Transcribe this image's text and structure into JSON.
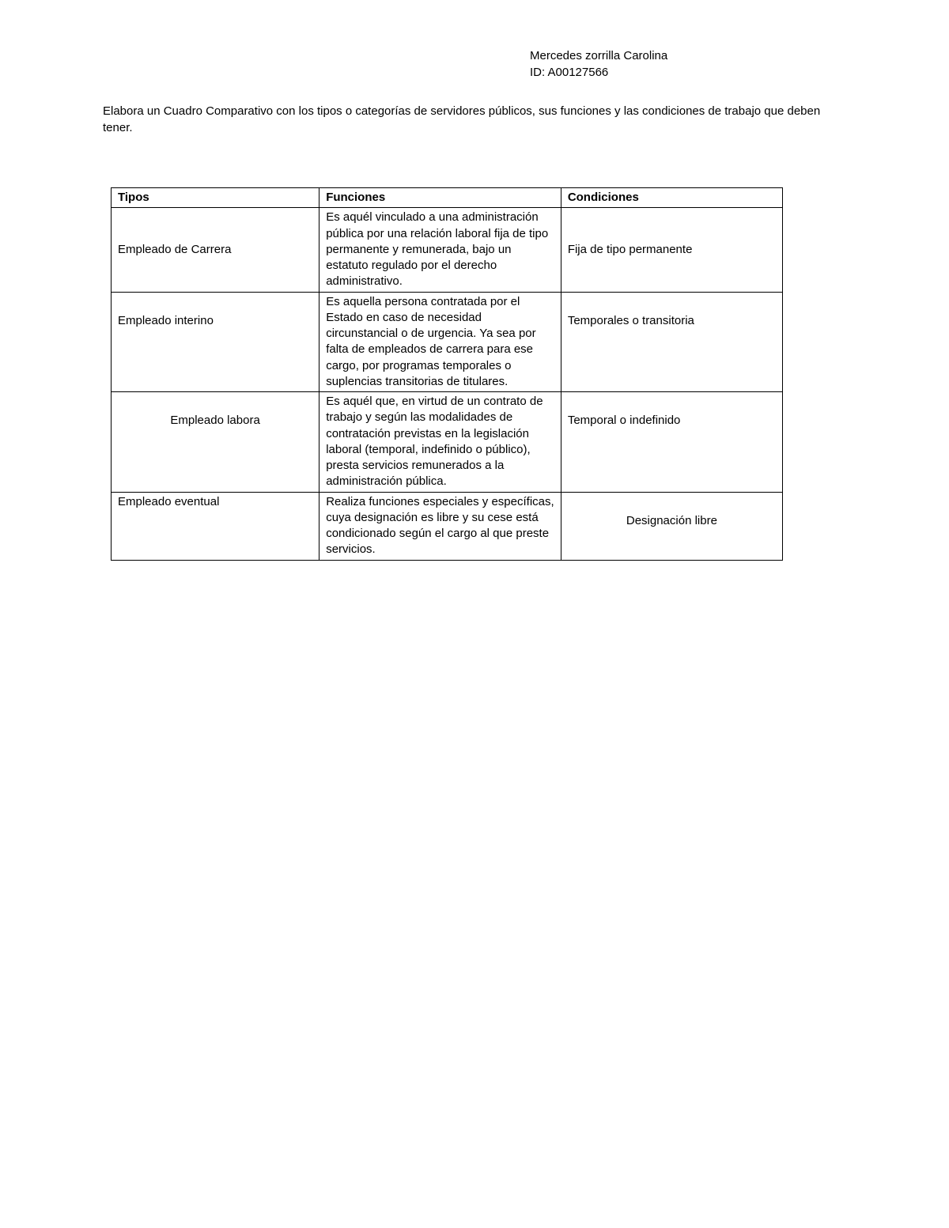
{
  "header": {
    "name": "Mercedes zorrilla Carolina",
    "id": "ID: A00127566"
  },
  "instruction": "Elabora un Cuadro Comparativo con los tipos o categorías de servidores públicos, sus funciones y las condiciones de trabajo que deben tener.",
  "table": {
    "columns": [
      "Tipos",
      "Funciones",
      "Condiciones"
    ],
    "column_widths": [
      0.31,
      0.36,
      0.33
    ],
    "border_color": "#000000",
    "background_color": "#ffffff",
    "header_font_weight": "bold",
    "font_size": 15,
    "rows": [
      {
        "tipo": "Empleado de Carrera",
        "tipo_align": "left",
        "tipo_valign": "middle",
        "funciones": "Es aquél vinculado a una administración pública por una relación laboral fija de tipo permanente y remunerada, bajo un estatuto regulado por el derecho administrativo.",
        "condiciones": "Fija de tipo permanente",
        "condiciones_align": "left",
        "condiciones_valign": "middle"
      },
      {
        "tipo": "Empleado interino",
        "tipo_align": "left",
        "tipo_valign": "top-pad",
        "funciones": "Es aquella persona contratada por el Estado en caso de necesidad circunstancial o de urgencia. Ya sea por falta de empleados de carrera para ese cargo, por programas temporales o suplencias transitorias de titulares.",
        "condiciones": "Temporales o transitoria",
        "condiciones_align": "left",
        "condiciones_valign": "top-pad"
      },
      {
        "tipo": "Empleado labora",
        "tipo_align": "center",
        "tipo_valign": "top-pad",
        "funciones": "Es aquél que, en virtud de un contrato de trabajo y según las modalidades de contratación previstas en la legislación laboral (temporal, indefinido o público), presta servicios remunerados a la administración pública.",
        "condiciones": "Temporal o indefinido",
        "condiciones_align": "left",
        "condiciones_valign": "top-pad"
      },
      {
        "tipo": "Empleado eventual",
        "tipo_align": "left",
        "tipo_valign": "top",
        "funciones": "Realiza funciones especiales y específicas, cuya designación es libre y su cese está condicionado según el cargo al que preste servicios.",
        "condiciones": "Designación libre",
        "condiciones_align": "center",
        "condiciones_valign": "top-pad"
      }
    ]
  }
}
